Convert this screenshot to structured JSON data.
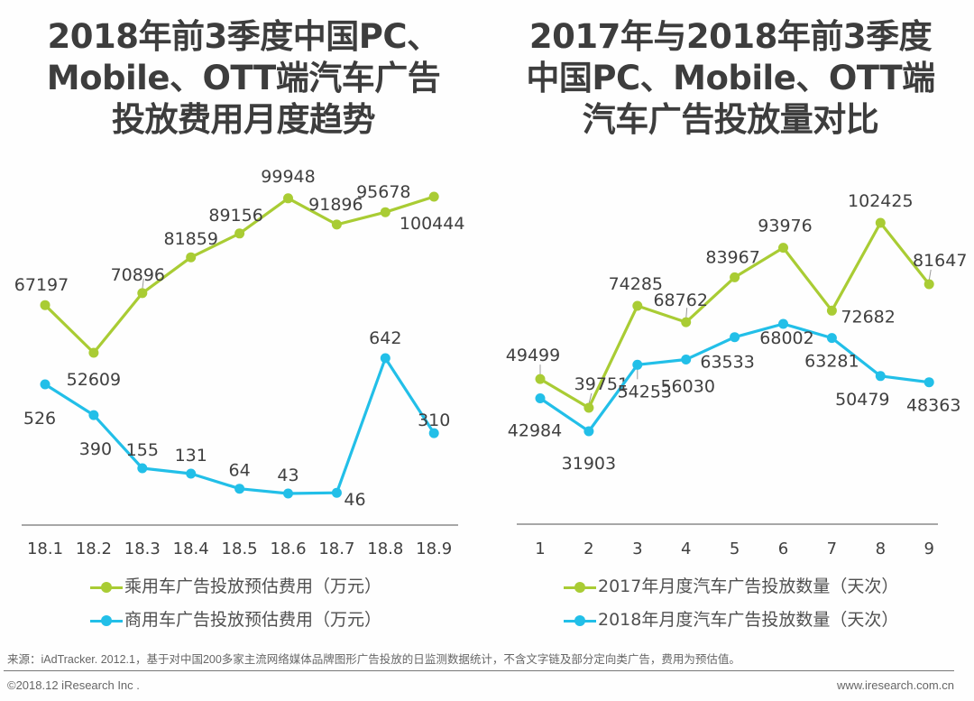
{
  "colors": {
    "green": "#a9cc34",
    "blue": "#22bfe8",
    "leader": "#999999",
    "axis": "#8a8a8a"
  },
  "footer": {
    "source": "来源：iAdTracker. 2012.1，基于对中国200多家主流网络媒体品牌图形广告投放的日监测数据统计，不含文字链及部分定向类广告，费用为预估值。",
    "copyright": "©2018.12 iResearch Inc .",
    "website": "www.iresearch.com.cn"
  },
  "chart_data": [
    {
      "type": "line",
      "title_lines": [
        "2018年前3季度中国PC、",
        "Mobile、OTT端汽车广告",
        "投放费用月度趋势"
      ],
      "title": "2018年前3季度中国PC、Mobile、OTT端汽车广告投放费用月度趋势",
      "xlabel": "",
      "ylabel": "",
      "categories": [
        "18.1",
        "18.2",
        "18.3",
        "18.4",
        "18.5",
        "18.6",
        "18.7",
        "18.8",
        "18.9"
      ],
      "grid": false,
      "legend_position": "bottom",
      "series": [
        {
          "name": "乘用车广告投放预估费用（万元）",
          "color": "#a9cc34",
          "values": [
            67197,
            52609,
            70896,
            81859,
            89156,
            99948,
            91896,
            95678,
            100444
          ]
        },
        {
          "name": "商用车广告投放预估费用（万元）",
          "color": "#22bfe8",
          "values": [
            526,
            390,
            155,
            131,
            64,
            43,
            46,
            642,
            310
          ]
        }
      ]
    },
    {
      "type": "line",
      "title_lines": [
        "2017年与2018年前3季度",
        "中国PC、Mobile、OTT端",
        "汽车广告投放量对比"
      ],
      "title": "2017年与2018年前3季度中国PC、Mobile、OTT端汽车广告投放量对比",
      "xlabel": "",
      "ylabel": "",
      "categories": [
        "1",
        "2",
        "3",
        "4",
        "5",
        "6",
        "7",
        "8",
        "9"
      ],
      "grid": false,
      "legend_position": "bottom",
      "series": [
        {
          "name": "2017年月度汽车广告投放数量（天次）",
          "color": "#a9cc34",
          "values": [
            49499,
            39751,
            74285,
            68762,
            83967,
            93976,
            72682,
            102425,
            81647
          ]
        },
        {
          "name": "2018年月度汽车广告投放数量（天次）",
          "color": "#22bfe8",
          "values": [
            42984,
            31903,
            54253,
            56030,
            63533,
            68002,
            63281,
            50479,
            48363
          ]
        }
      ]
    }
  ]
}
